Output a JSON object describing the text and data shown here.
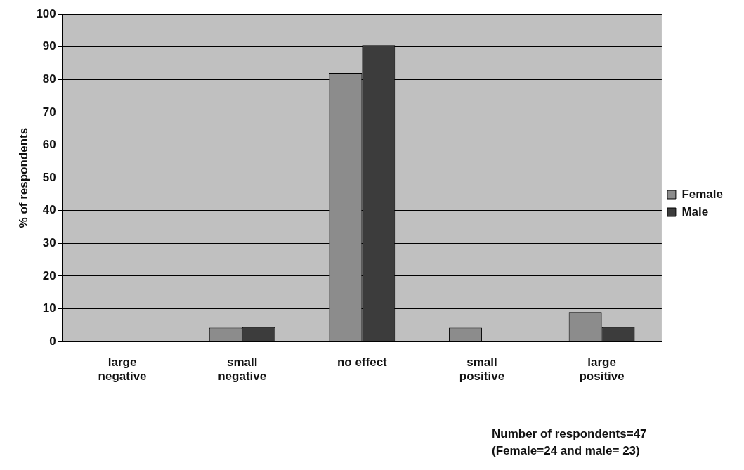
{
  "chart_data": {
    "type": "bar",
    "ylabel": "% of respondents",
    "categories": [
      "large negative",
      "small negative",
      "no effect",
      "small positive",
      "large positive"
    ],
    "series": [
      {
        "name": "Female",
        "color": "#8c8c8c",
        "values": [
          0,
          4.2,
          82,
          4.2,
          9
        ]
      },
      {
        "name": "Male",
        "color": "#3c3c3c",
        "values": [
          0,
          4.4,
          90.5,
          0,
          4.4
        ]
      }
    ],
    "ylim": [
      0,
      100
    ],
    "yticks": [
      0,
      10,
      20,
      30,
      40,
      50,
      60,
      70,
      80,
      90,
      100
    ],
    "grid": "y",
    "legend": "right",
    "annotations": [
      "Number of respondents=47",
      "(Female=24 and male= 23)"
    ]
  }
}
